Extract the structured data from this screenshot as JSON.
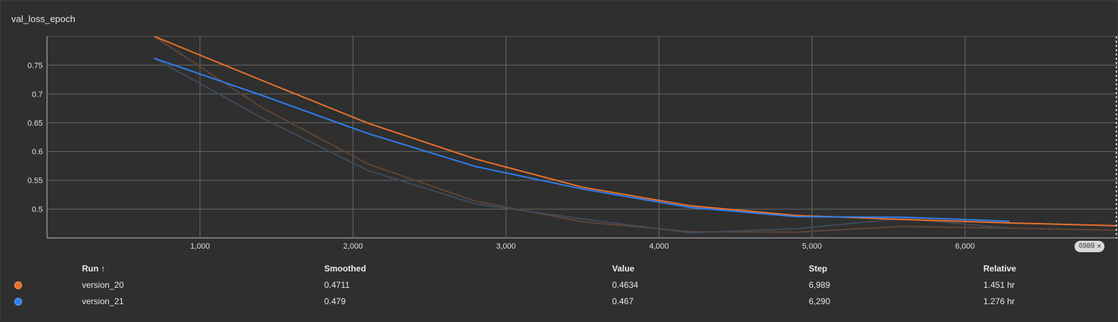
{
  "card": {
    "title": "val_loss_epoch"
  },
  "step_badge": {
    "label": "6989",
    "close_glyph": "×"
  },
  "table": {
    "headers": {
      "run": "Run ↑",
      "smoothed": "Smoothed",
      "value": "Value",
      "step": "Step",
      "relative": "Relative"
    },
    "rows": [
      {
        "color": "#e8712b",
        "run": "version_20",
        "smoothed": "0.4711",
        "value": "0.4634",
        "step": "6,989",
        "relative": "1.451 hr"
      },
      {
        "color": "#2f7ff0",
        "run": "version_21",
        "smoothed": "0.479",
        "value": "0.467",
        "step": "6,290",
        "relative": "1.276 hr"
      }
    ]
  },
  "chart_data": {
    "type": "line",
    "title": "val_loss_epoch",
    "xlabel": "",
    "ylabel": "",
    "xlim": [
      0,
      7000
    ],
    "ylim": [
      0.45,
      0.8
    ],
    "x_ticks": [
      1000,
      2000,
      3000,
      4000,
      5000,
      6000
    ],
    "x_tick_labels": [
      "1,000",
      "2,000",
      "3,000",
      "4,000",
      "5,000",
      "6,000"
    ],
    "y_ticks": [
      0.5,
      0.55,
      0.6,
      0.65,
      0.7,
      0.75
    ],
    "y_tick_labels": [
      "0.5",
      "0.55",
      "0.6",
      "0.65",
      "0.7",
      "0.75"
    ],
    "grid": true,
    "cursor_step": 6989,
    "series": [
      {
        "name": "version_20",
        "color": "#e8712b",
        "raw_color": "#5e4536",
        "raw": [
          [
            700,
            0.8
          ],
          [
            1400,
            0.677
          ],
          [
            2100,
            0.578
          ],
          [
            2800,
            0.514
          ],
          [
            3500,
            0.478
          ],
          [
            4200,
            0.461
          ],
          [
            4900,
            0.46
          ],
          [
            5600,
            0.47
          ],
          [
            6300,
            0.467
          ],
          [
            6989,
            0.4634
          ]
        ],
        "smoothed": [
          [
            700,
            0.8
          ],
          [
            1400,
            0.724
          ],
          [
            2100,
            0.649
          ],
          [
            2800,
            0.587
          ],
          [
            3500,
            0.538
          ],
          [
            4200,
            0.506
          ],
          [
            4900,
            0.489
          ],
          [
            5600,
            0.482
          ],
          [
            6300,
            0.476
          ],
          [
            6989,
            0.4711
          ]
        ]
      },
      {
        "name": "version_21",
        "color": "#2f7ff0",
        "raw_color": "#3e4a59",
        "raw": [
          [
            700,
            0.762
          ],
          [
            1400,
            0.659
          ],
          [
            2100,
            0.567
          ],
          [
            2800,
            0.509
          ],
          [
            3500,
            0.483
          ],
          [
            4200,
            0.459
          ],
          [
            4900,
            0.466
          ],
          [
            5600,
            0.484
          ],
          [
            6290,
            0.467
          ]
        ],
        "smoothed": [
          [
            700,
            0.762
          ],
          [
            1400,
            0.698
          ],
          [
            2100,
            0.631
          ],
          [
            2800,
            0.574
          ],
          [
            3500,
            0.535
          ],
          [
            4200,
            0.503
          ],
          [
            4900,
            0.487
          ],
          [
            5600,
            0.486
          ],
          [
            6290,
            0.479
          ]
        ]
      }
    ]
  }
}
